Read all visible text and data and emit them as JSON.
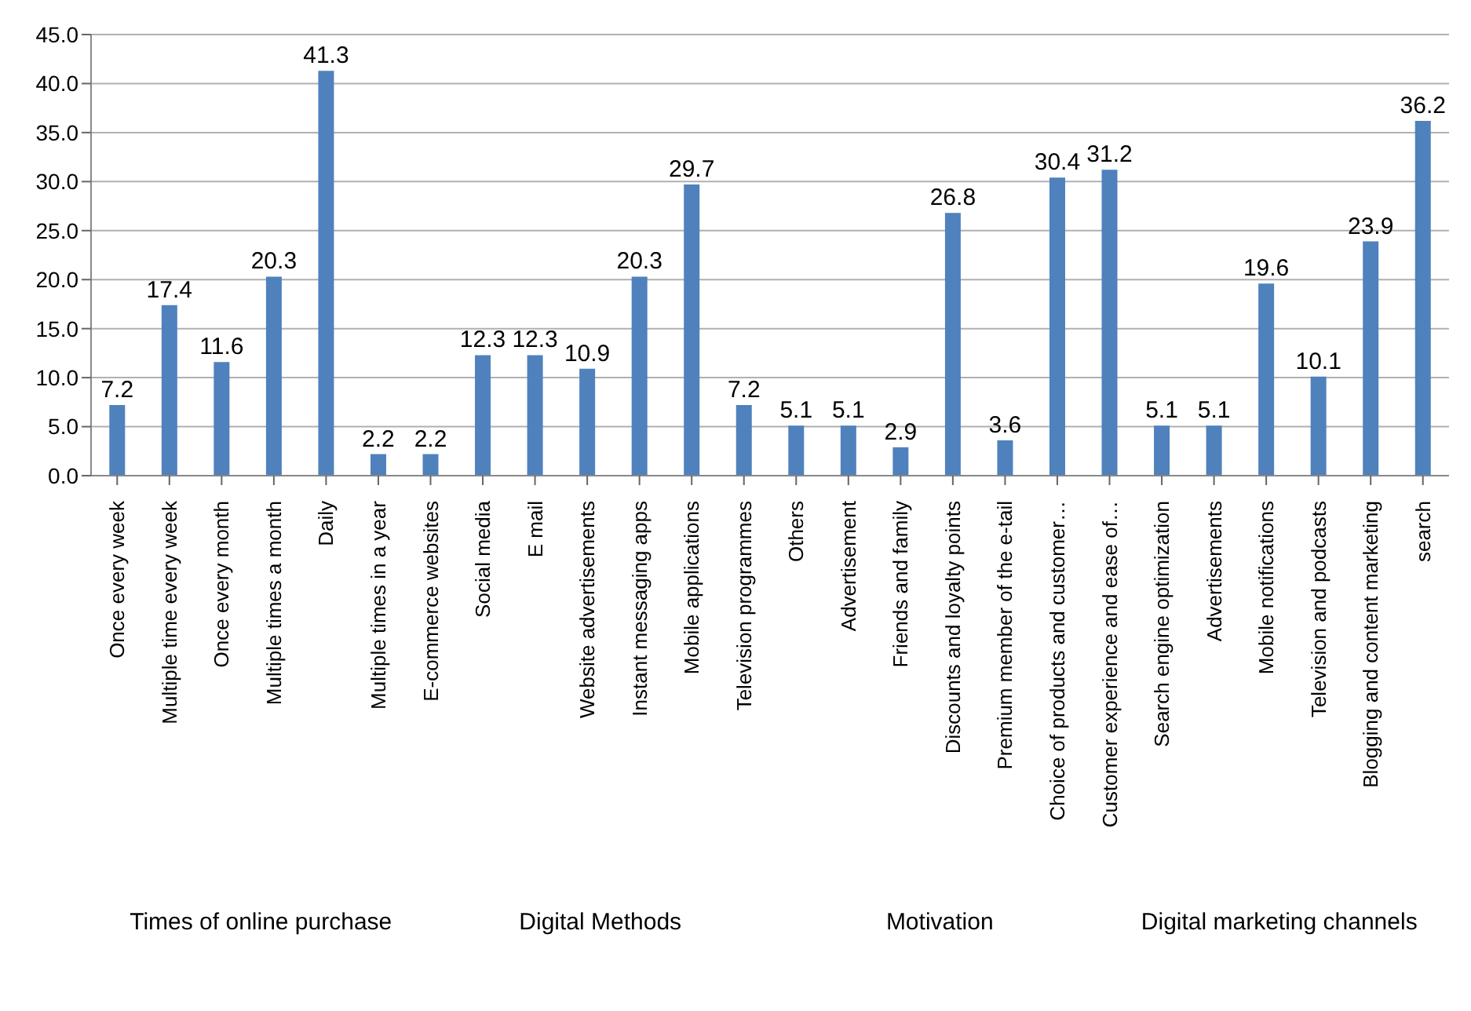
{
  "chart_data": {
    "type": "bar",
    "categories": [
      "Once every week",
      "Multiple time every week",
      "Once every month",
      "Multiple times a month",
      "Daily",
      "Multiple times in a year",
      "E-commerce websites",
      "Social media",
      "E mail",
      "Website advertisements",
      "Instant messaging apps",
      "Mobile applications",
      "Television programmes",
      "Others",
      "Advertisement",
      "Friends and family",
      "Discounts and loyalty points",
      "Premium member of the e-tail",
      "Choice of products and customer…",
      "Customer experience and ease of…",
      "Search engine optimization",
      "Advertisements",
      "Mobile notifications",
      "Television and podcasts",
      "Blogging and content marketing",
      "search"
    ],
    "values": [
      7.2,
      17.4,
      11.6,
      20.3,
      41.3,
      2.2,
      2.2,
      12.3,
      12.3,
      10.9,
      20.3,
      29.7,
      7.2,
      5.1,
      5.1,
      2.9,
      26.8,
      3.6,
      30.4,
      31.2,
      5.1,
      5.1,
      19.6,
      10.1,
      23.9,
      36.2
    ],
    "color": "#4f81bd",
    "ylim": [
      0,
      45
    ],
    "yticks": [
      {
        "value": 0,
        "label": "0.0"
      },
      {
        "value": 5,
        "label": "5.0"
      },
      {
        "value": 10,
        "label": "10.0"
      },
      {
        "value": 15,
        "label": "15.0"
      },
      {
        "value": 20,
        "label": "20.0"
      },
      {
        "value": 25,
        "label": "25.0"
      },
      {
        "value": 30,
        "label": "30.0"
      },
      {
        "value": 35,
        "label": "35.0"
      },
      {
        "value": 40,
        "label": "40.0"
      },
      {
        "value": 45,
        "label": "45.0"
      }
    ],
    "grid": "y",
    "data_labels": true,
    "annotations": [
      "Times of online purchase",
      "Digital Methods",
      "Motivation",
      "Digital marketing channels"
    ]
  }
}
